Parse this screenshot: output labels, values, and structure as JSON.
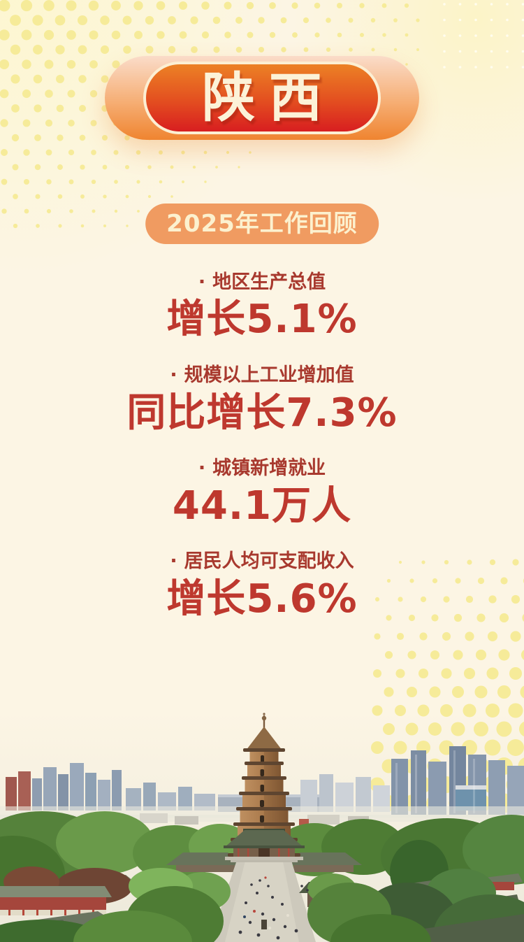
{
  "poster": {
    "province": "陕西",
    "section_title": "2025年工作回顾",
    "stats": [
      {
        "bullet": "·",
        "label": "地区生产总值",
        "value": "增长5.1%"
      },
      {
        "bullet": "·",
        "label": "规模以上工业增加值",
        "value": "同比增长7.3%"
      },
      {
        "bullet": "·",
        "label": "城镇新增就业",
        "value": "44.1万人"
      },
      {
        "bullet": "·",
        "label": "居民人均可支配收入",
        "value": "增长5.6%"
      }
    ],
    "colors": {
      "background": "#FCF5E4",
      "badge_gradient_top": "#EC8125",
      "badge_gradient_bottom": "#D81E20",
      "badge_glow_orange": "#EF8430",
      "badge_border_cream": "#FCEFD3",
      "badge_text": "#FCF2D8",
      "section_pill": "#F09B61",
      "section_text": "#FCF1CF",
      "stat_label_red": "#A8392E",
      "stat_value_red": "#BE382E",
      "halftone_dot_yellow": "#F6EB99"
    }
  }
}
